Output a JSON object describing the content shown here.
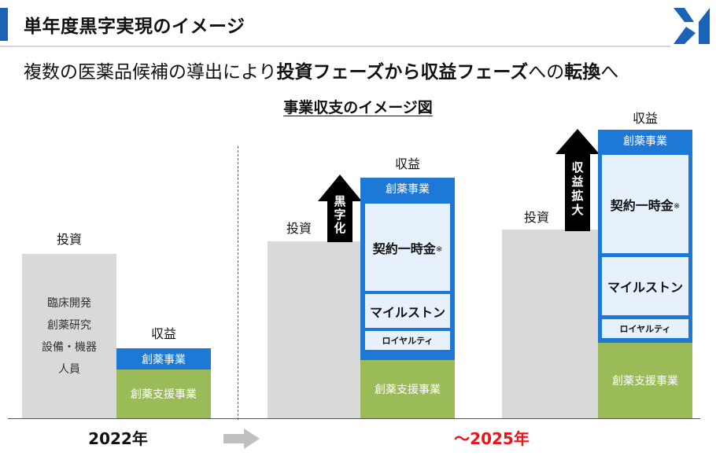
{
  "header": {
    "title": "単年度黒字実現のイメージ",
    "subtitle_normal": "複数の医薬品候補の導出により",
    "subtitle_bold_1": "投資フェーズから収益フェーズ",
    "subtitle_normal_2": "への",
    "subtitle_bold_2": "転換",
    "subtitle_end": "へ"
  },
  "figure_title": "事業収支のイメージ図",
  "group_2022": {
    "invest_label": "投資",
    "invest_items": [
      "臨床開発",
      "創薬研究",
      "設備・機器",
      "人員"
    ],
    "revenue_label": "収益",
    "drug_discovery": "創薬事業",
    "support": "創薬支援事業"
  },
  "group_mid": {
    "invest_label": "投資",
    "revenue_label": "収益",
    "drug_discovery": "創薬事業",
    "upfront": "契約一時金",
    "mark": "※",
    "milestone": "マイルストン",
    "royalty": "ロイヤルティ",
    "support": "創薬支援事業",
    "arrow_label": "黒字化"
  },
  "group_2025": {
    "invest_label": "投資",
    "revenue_label": "収益",
    "drug_discovery": "創薬事業",
    "upfront": "契約一時金",
    "mark": "※",
    "milestone": "マイルストン",
    "royalty": "ロイヤルティ",
    "support": "創薬支援事業",
    "arrow_label": "収益拡大"
  },
  "timeline": {
    "year_start": "2022年",
    "year_end": "～2025年",
    "end_color": "#e8141b"
  },
  "colors": {
    "accent": "#1b63b6",
    "drug_blue": "#1e78d6",
    "support_green": "#9bbb59",
    "invest_gray": "#d9d9d9",
    "panel_light": "#e6f1fb"
  },
  "icons": {
    "logo": "company-logo-icon",
    "timeline_arrow": "right-arrow-icon"
  }
}
